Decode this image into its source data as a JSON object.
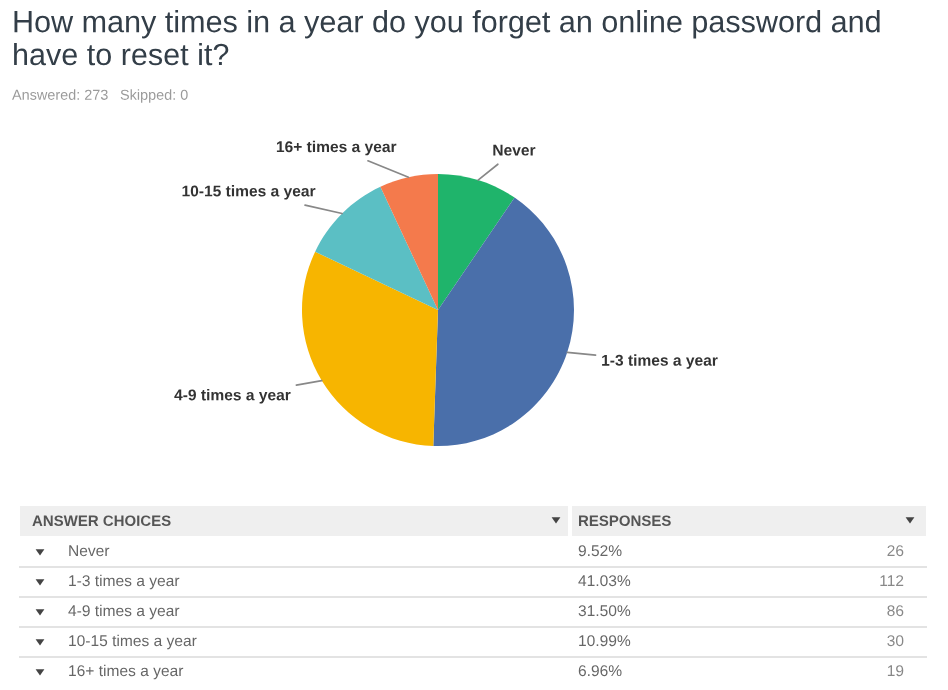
{
  "chart_data": [
    {
      "type": "pie",
      "title": "How many times in a year do you forget an online password and have to reset it?",
      "categories": [
        "Never",
        "1-3 times a year",
        "4-9 times a year",
        "10-15 times a year",
        "16+ times a year"
      ],
      "values": [
        9.52,
        41.03,
        31.5,
        10.99,
        6.96
      ],
      "colors": [
        "#1fb46b",
        "#4a6faa",
        "#f7b500",
        "#5bbfc4",
        "#f47a4c"
      ],
      "annotations": [
        "Answered: 273",
        "Skipped: 0"
      ]
    },
    {
      "type": "other",
      "categories": [
        "Never",
        "1-3 times a year",
        "4-9 times a year",
        "10-15 times a year",
        "16+ times a year"
      ],
      "series": [
        {
          "values": [
            9.52,
            41.03,
            31.5,
            10.99,
            6.96
          ],
          "value_labels": [
            "9.52%",
            "41.03%",
            "31.50%",
            "10.99%",
            "6.96%"
          ]
        },
        {
          "values": [
            26,
            112,
            86,
            30,
            19
          ]
        }
      ],
      "data_labels": true,
      "annotations": [
        "ANSWER CHOICES",
        "RESPONSES"
      ]
    }
  ]
}
